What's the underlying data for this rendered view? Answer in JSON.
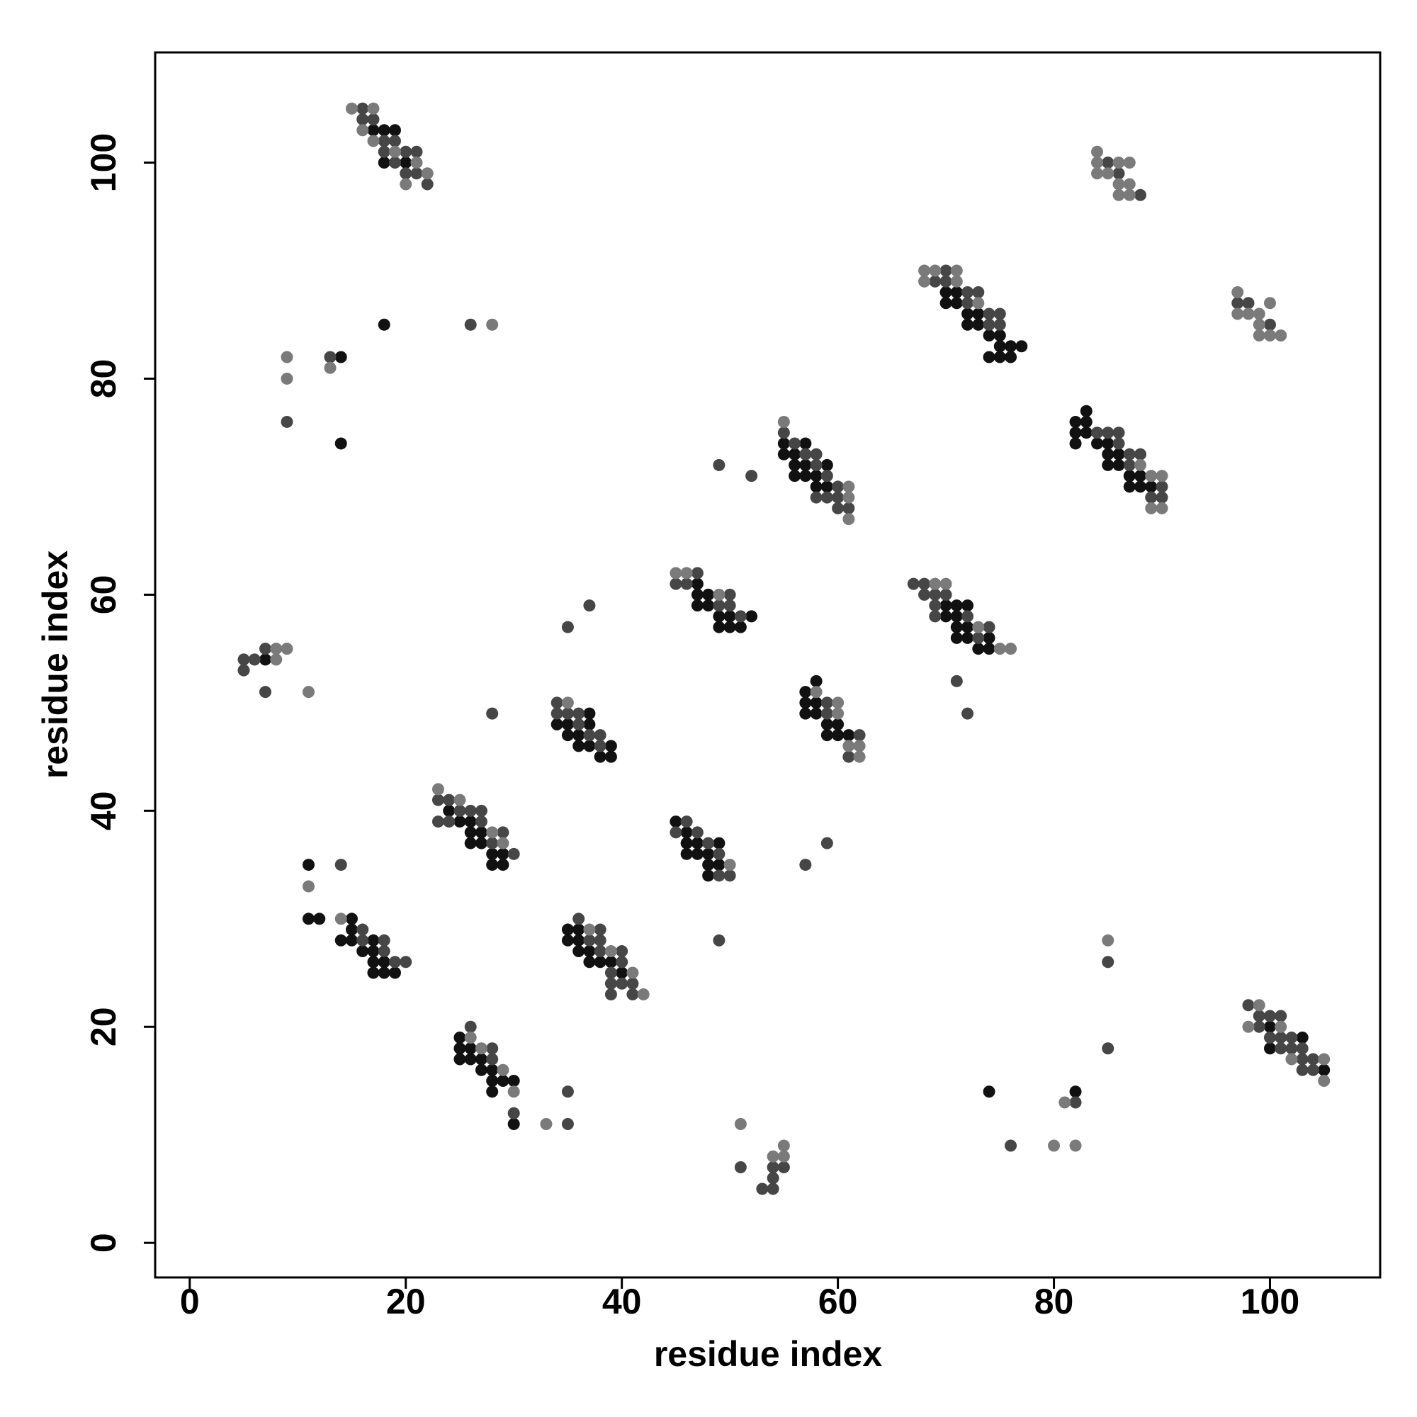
{
  "chart_data": {
    "type": "scatter",
    "xlabel": "residue index",
    "ylabel": "residue index",
    "xlim": [
      -3.2,
      110.2
    ],
    "ylim": [
      -3.2,
      110.2
    ],
    "xticks": [
      0,
      20,
      40,
      60,
      80,
      100
    ],
    "yticks": [
      0,
      20,
      40,
      60,
      80,
      100
    ],
    "series": [
      {
        "color": "#111111",
        "x": [
          17,
          18,
          19,
          18,
          20,
          70,
          71,
          70,
          71,
          72,
          73,
          72,
          73,
          74,
          75,
          75,
          76,
          77,
          74,
          75,
          76,
          18,
          14,
          14,
          55,
          57,
          55,
          56,
          56,
          57,
          59,
          56,
          57,
          58,
          58,
          59,
          83,
          82,
          83,
          82,
          83,
          82,
          84,
          85,
          85,
          86,
          85,
          86,
          87,
          88,
          87,
          88,
          89,
          47,
          47,
          48,
          47,
          48,
          49,
          50,
          52,
          49,
          50,
          51,
          70,
          71,
          72,
          70,
          71,
          71,
          72,
          71,
          72,
          74,
          73,
          74,
          7,
          58,
          57,
          57,
          58,
          57,
          58,
          59,
          60,
          59,
          60,
          61,
          37,
          34,
          35,
          37,
          35,
          36,
          36,
          37,
          39,
          38,
          39,
          24,
          25,
          26,
          26,
          27,
          26,
          27,
          28,
          29,
          28,
          29,
          45,
          46,
          46,
          47,
          49,
          46,
          47,
          48,
          48,
          49,
          48,
          11,
          11,
          12,
          15,
          15,
          14,
          15,
          17,
          16,
          17,
          17,
          18,
          17,
          18,
          19,
          35,
          36,
          35,
          36,
          36,
          37,
          37,
          38,
          39,
          40,
          100,
          103,
          100,
          105,
          25,
          25,
          26,
          25,
          26,
          27,
          27,
          28,
          28,
          29,
          30,
          28,
          30,
          74,
          82
        ],
        "y": [
          103,
          103,
          103,
          100,
          100,
          88,
          88,
          87,
          87,
          86,
          86,
          85,
          85,
          84,
          84,
          83,
          83,
          83,
          82,
          82,
          82,
          85,
          82,
          74,
          74,
          74,
          73,
          73,
          72,
          72,
          72,
          71,
          71,
          71,
          70,
          70,
          77,
          76,
          76,
          75,
          75,
          74,
          74,
          74,
          73,
          73,
          72,
          72,
          71,
          71,
          70,
          70,
          70,
          61,
          60,
          60,
          59,
          59,
          58,
          58,
          58,
          57,
          57,
          57,
          59,
          59,
          59,
          58,
          58,
          57,
          57,
          56,
          56,
          56,
          55,
          55,
          54,
          52,
          51,
          50,
          50,
          49,
          49,
          48,
          48,
          47,
          47,
          47,
          49,
          48,
          48,
          48,
          47,
          47,
          46,
          46,
          46,
          45,
          45,
          40,
          39,
          39,
          38,
          38,
          37,
          37,
          36,
          36,
          35,
          35,
          39,
          38,
          37,
          37,
          37,
          36,
          36,
          36,
          35,
          35,
          34,
          35,
          30,
          30,
          30,
          29,
          28,
          28,
          28,
          27,
          27,
          26,
          26,
          25,
          25,
          25,
          29,
          29,
          28,
          28,
          27,
          27,
          26,
          26,
          26,
          25,
          20,
          19,
          18,
          16,
          19,
          18,
          18,
          17,
          17,
          17,
          16,
          16,
          15,
          15,
          15,
          14,
          11,
          14,
          14
        ]
      },
      {
        "color": "#464646",
        "x": [
          16,
          16,
          17,
          18,
          19,
          18,
          20,
          21,
          19,
          20,
          21,
          22,
          85,
          86,
          88,
          70,
          69,
          70,
          72,
          73,
          72,
          74,
          75,
          74,
          75,
          97,
          98,
          100,
          26,
          13,
          9,
          55,
          56,
          57,
          58,
          58,
          59,
          60,
          58,
          59,
          60,
          60,
          61,
          49,
          52,
          84,
          85,
          86,
          86,
          87,
          88,
          87,
          90,
          89,
          90,
          47,
          45,
          46,
          50,
          49,
          50,
          51,
          37,
          35,
          67,
          68,
          68,
          69,
          70,
          69,
          69,
          72,
          74,
          73,
          71,
          72,
          7,
          5,
          6,
          5,
          7,
          59,
          59,
          62,
          61,
          34,
          34,
          35,
          36,
          36,
          37,
          38,
          38,
          28,
          23,
          24,
          25,
          26,
          27,
          23,
          24,
          27,
          29,
          28,
          30,
          46,
          45,
          47,
          48,
          49,
          49,
          50,
          57,
          59,
          14,
          49,
          16,
          16,
          18,
          18,
          19,
          20,
          36,
          38,
          37,
          38,
          38,
          40,
          40,
          39,
          39,
          40,
          41,
          39,
          41,
          85,
          85,
          98,
          99,
          100,
          101,
          99,
          100,
          101,
          102,
          101,
          102,
          103,
          103,
          104,
          103,
          104,
          26,
          28,
          28,
          30,
          35,
          35,
          82,
          76,
          51,
          54,
          55,
          54,
          53,
          54
        ],
        "y": [
          105,
          104,
          104,
          102,
          102,
          101,
          101,
          101,
          100,
          99,
          99,
          98,
          100,
          99,
          97,
          90,
          89,
          89,
          88,
          88,
          87,
          86,
          86,
          85,
          85,
          87,
          87,
          85,
          85,
          82,
          76,
          75,
          74,
          73,
          73,
          72,
          71,
          70,
          69,
          69,
          69,
          68,
          68,
          72,
          71,
          75,
          75,
          75,
          74,
          73,
          73,
          72,
          70,
          69,
          69,
          62,
          61,
          61,
          60,
          59,
          59,
          58,
          59,
          57,
          61,
          61,
          60,
          60,
          60,
          59,
          58,
          58,
          57,
          56,
          52,
          49,
          55,
          54,
          54,
          53,
          51,
          50,
          49,
          47,
          45,
          50,
          49,
          49,
          49,
          48,
          47,
          47,
          46,
          49,
          41,
          41,
          40,
          40,
          40,
          39,
          39,
          39,
          38,
          37,
          36,
          39,
          38,
          38,
          37,
          36,
          34,
          34,
          35,
          37,
          35,
          28,
          29,
          28,
          28,
          27,
          26,
          26,
          30,
          29,
          28,
          28,
          27,
          27,
          26,
          25,
          24,
          24,
          24,
          23,
          23,
          26,
          18,
          22,
          21,
          21,
          21,
          20,
          19,
          19,
          19,
          18,
          18,
          18,
          17,
          17,
          16,
          16,
          20,
          18,
          17,
          12,
          14,
          11,
          13,
          9,
          7,
          7,
          7,
          6,
          5,
          5
        ]
      },
      {
        "color": "#7a7a7a",
        "x": [
          15,
          17,
          16,
          17,
          19,
          21,
          22,
          20,
          84,
          84,
          86,
          87,
          84,
          85,
          86,
          87,
          86,
          87,
          68,
          69,
          71,
          68,
          71,
          73,
          97,
          100,
          97,
          98,
          99,
          99,
          99,
          100,
          101,
          28,
          9,
          13,
          9,
          55,
          61,
          61,
          61,
          88,
          89,
          90,
          89,
          90,
          45,
          46,
          49,
          69,
          70,
          73,
          75,
          76,
          8,
          9,
          8,
          11,
          58,
          60,
          60,
          61,
          62,
          62,
          35,
          23,
          25,
          28,
          29,
          50,
          11,
          14,
          37,
          39,
          41,
          42,
          85,
          99,
          98,
          101,
          102,
          105,
          105,
          26,
          27,
          29,
          30,
          33,
          81,
          80,
          82,
          51,
          55,
          54,
          55
        ],
        "y": [
          105,
          105,
          103,
          102,
          101,
          100,
          99,
          98,
          101,
          100,
          100,
          100,
          99,
          99,
          98,
          98,
          97,
          97,
          90,
          90,
          90,
          89,
          89,
          87,
          88,
          87,
          86,
          86,
          86,
          85,
          84,
          84,
          84,
          85,
          82,
          81,
          80,
          76,
          70,
          69,
          67,
          72,
          71,
          71,
          68,
          68,
          62,
          62,
          60,
          61,
          61,
          57,
          55,
          55,
          55,
          55,
          54,
          51,
          51,
          50,
          49,
          46,
          46,
          45,
          50,
          42,
          41,
          38,
          37,
          35,
          33,
          30,
          29,
          27,
          25,
          23,
          28,
          22,
          20,
          20,
          17,
          17,
          15,
          19,
          18,
          16,
          14,
          11,
          13,
          9,
          9,
          11,
          9,
          8,
          8
        ]
      }
    ]
  }
}
